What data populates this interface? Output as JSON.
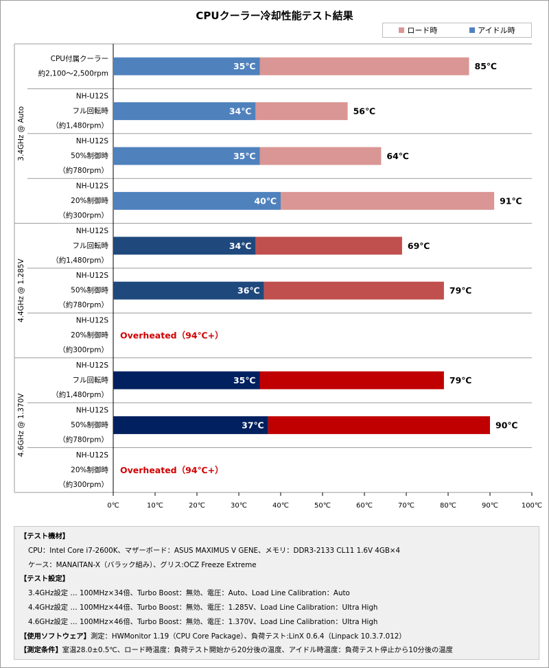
{
  "chart_data": {
    "type": "bar",
    "title": "CPUクーラー冷却性能テスト結果",
    "orientation": "horizontal",
    "legend": [
      {
        "name": "ロード時",
        "color": "#da9694"
      },
      {
        "name": "アイドル時",
        "color": "#4f81bd"
      }
    ],
    "xlim": [
      0,
      100
    ],
    "xticks": [
      "0℃",
      "10℃",
      "20℃",
      "30℃",
      "40℃",
      "50℃",
      "60℃",
      "70℃",
      "80℃",
      "90℃",
      "100℃"
    ],
    "groups": [
      {
        "label": "3.4GHz @ Auto"
      },
      {
        "label": "4.4GHz @ 1.285V"
      },
      {
        "label": "4.6GHz @ 1.370V"
      }
    ],
    "rows": [
      {
        "group": 0,
        "lines": [
          "CPU付属クーラー",
          "約2,100～2,500rpm"
        ],
        "idle": 35,
        "load": 85,
        "idle_label": "35℃",
        "load_label": "85℃",
        "idle_color": "#4f81bd",
        "load_color": "#da9694"
      },
      {
        "group": 0,
        "lines": [
          "NH-U12S",
          "フル回転時",
          "（約1,480rpm）"
        ],
        "idle": 34,
        "load": 56,
        "idle_label": "34℃",
        "load_label": "56℃",
        "idle_color": "#4f81bd",
        "load_color": "#da9694"
      },
      {
        "group": 0,
        "lines": [
          "NH-U12S",
          "50%制御時",
          "（約780rpm）"
        ],
        "idle": 35,
        "load": 64,
        "idle_label": "35℃",
        "load_label": "64℃",
        "idle_color": "#4f81bd",
        "load_color": "#da9694"
      },
      {
        "group": 0,
        "lines": [
          "NH-U12S",
          "20%制御時",
          "（約300rpm）"
        ],
        "idle": 40,
        "load": 91,
        "idle_label": "40℃",
        "load_label": "91℃",
        "idle_color": "#4f81bd",
        "load_color": "#da9694"
      },
      {
        "group": 1,
        "lines": [
          "NH-U12S",
          "フル回転時",
          "（約1,480rpm）"
        ],
        "idle": 34,
        "load": 69,
        "idle_label": "34℃",
        "load_label": "69℃",
        "idle_color": "#1f497d",
        "load_color": "#c0504d"
      },
      {
        "group": 1,
        "lines": [
          "NH-U12S",
          "50%制御時",
          "（約780rpm）"
        ],
        "idle": 36,
        "load": 79,
        "idle_label": "36℃",
        "load_label": "79℃",
        "idle_color": "#1f497d",
        "load_color": "#c0504d"
      },
      {
        "group": 1,
        "lines": [
          "NH-U12S",
          "20%制御時",
          "（約300rpm）"
        ],
        "note": "Overheated（94℃+）"
      },
      {
        "group": 2,
        "lines": [
          "NH-U12S",
          "フル回転時",
          "（約1,480rpm）"
        ],
        "idle": 35,
        "load": 79,
        "idle_label": "35℃",
        "load_label": "79℃",
        "idle_color": "#002060",
        "load_color": "#c00000"
      },
      {
        "group": 2,
        "lines": [
          "NH-U12S",
          "50%制御時",
          "（約780rpm）"
        ],
        "idle": 37,
        "load": 90,
        "idle_label": "37℃",
        "load_label": "90℃",
        "idle_color": "#002060",
        "load_color": "#c00000"
      },
      {
        "group": 2,
        "lines": [
          "NH-U12S",
          "20%制御時",
          "（約300rpm）"
        ],
        "note": "Overheated（94℃+）"
      }
    ],
    "note_color": "#d00000"
  },
  "notes": {
    "equipment_heading": "【テスト機材】",
    "equipment_cpu": "CPU：Intel Core i7-2600K、マザーボード：ASUS MAXIMUS V GENE、メモリ：DDR3-2133 CL11 1.6V 4GB×4",
    "equipment_case": "ケース：MANAITAN-X（バラック組み）、グリス:OCZ Freeze Extreme",
    "settings_heading": "【テスト設定】",
    "setting_1": "3.4GHz設定 … 100MHz×34倍、Turbo Boost：無効、電圧：Auto、Load Line Calibration：Auto",
    "setting_2": "4.4GHz設定 … 100MHz×44倍、Turbo Boost：無効、電圧：1.285V、Load Line Calibration：Ultra High",
    "setting_3": "4.6GHz設定 … 100MHz×46倍、Turbo Boost：無効、電圧：1.370V、Load Line Calibration：Ultra High",
    "software_heading": "【使用ソフトウェア】",
    "software_text": "測定：HWMonitor 1.19（CPU Core Package）、負荷テスト:LinX 0.6.4（Linpack 10.3.7.012）",
    "conditions_heading": "【測定条件】",
    "conditions_text": "室温28.0±0.5℃、ロード時温度：負荷テスト開始から20分後の温度、アイドル時温度：負荷テスト停止から10分後の温度"
  }
}
